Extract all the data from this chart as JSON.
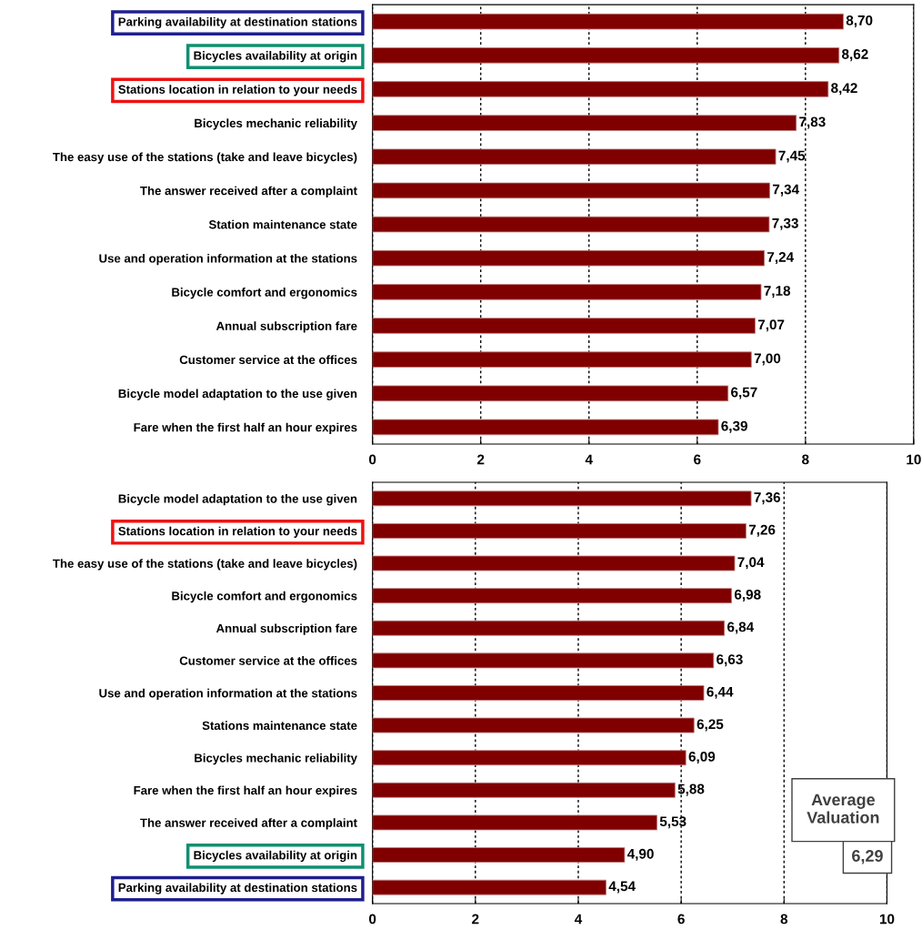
{
  "chart_data": [
    {
      "type": "bar",
      "orientation": "horizontal",
      "categories": [
        "Parking availability at destination stations",
        "Bicycles availability at origin",
        "Stations location in relation to your needs",
        "Bicycles mechanic reliability",
        "The easy use of the stations (take and leave bicycles)",
        "The answer received after a complaint",
        "Station maintenance state",
        "Use and operation information at the stations",
        "Bicycle comfort and ergonomics",
        "Annual subscription fare",
        "Customer service at the offices",
        "Bicycle model adaptation to the use given",
        "Fare when the first half an hour expires"
      ],
      "values": [
        8.7,
        8.62,
        8.42,
        7.83,
        7.45,
        7.34,
        7.33,
        7.24,
        7.18,
        7.07,
        7.0,
        6.57,
        6.39
      ],
      "value_labels": [
        "8,70",
        "8,62",
        "8,42",
        "7,83",
        "7,45",
        "7,34",
        "7,33",
        "7,24",
        "7,18",
        "7,07",
        "7,00",
        "6,57",
        "6,39"
      ],
      "color": "#800000",
      "xlim": [
        0,
        10
      ],
      "xticks": [
        0,
        2,
        4,
        6,
        8,
        10
      ],
      "grid": "x",
      "legend": false
    },
    {
      "type": "bar",
      "orientation": "horizontal",
      "categories": [
        "Bicycle model adaptation to the use given",
        "Stations location in relation to your needs",
        "The easy use of the stations (take and leave bicycles)",
        "Bicycle comfort and ergonomics",
        "Annual subscription fare",
        "Customer service at the offices",
        "Use and operation information at the stations",
        "Stations maintenance state",
        "Bicycles mechanic reliability",
        "Fare when the first half an hour expires",
        "The answer received after a complaint",
        "Bicycles availability at origin",
        "Parking availability at destination stations"
      ],
      "values": [
        7.36,
        7.26,
        7.04,
        6.98,
        6.84,
        6.63,
        6.44,
        6.25,
        6.09,
        5.88,
        5.53,
        4.9,
        4.54
      ],
      "value_labels": [
        "7,36",
        "7,26",
        "7,04",
        "6,98",
        "6,84",
        "6,63",
        "6,44",
        "6,25",
        "6,09",
        "5,88",
        "5,53",
        "4,90",
        "4,54"
      ],
      "color": "#800000",
      "xlim": [
        0,
        10
      ],
      "xticks": [
        0,
        2,
        4,
        6,
        8,
        10
      ],
      "grid": "x",
      "legend": false,
      "annotations": [
        "Average Valuation",
        "6,29"
      ]
    }
  ]
}
